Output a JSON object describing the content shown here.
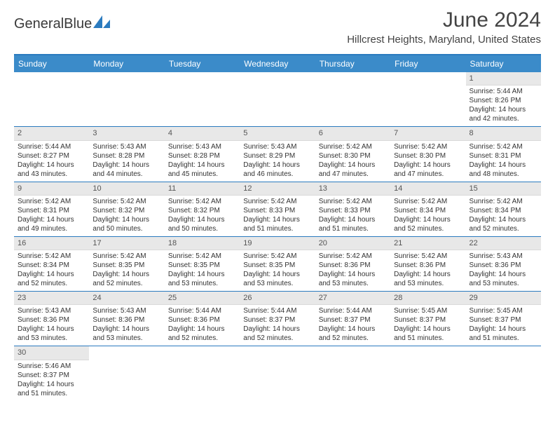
{
  "brand": {
    "name_part1": "General",
    "name_part2": "Blue"
  },
  "title": "June 2024",
  "location": "Hillcrest Heights, Maryland, United States",
  "colors": {
    "header_blue": "#3b8bc9",
    "border_blue": "#2b7bbf",
    "daynum_bg": "#e8e8e8",
    "text": "#333333"
  },
  "day_names": [
    "Sunday",
    "Monday",
    "Tuesday",
    "Wednesday",
    "Thursday",
    "Friday",
    "Saturday"
  ],
  "weeks": [
    [
      null,
      null,
      null,
      null,
      null,
      null,
      {
        "n": "1",
        "sr": "Sunrise: 5:44 AM",
        "ss": "Sunset: 8:26 PM",
        "d1": "Daylight: 14 hours",
        "d2": "and 42 minutes."
      }
    ],
    [
      {
        "n": "2",
        "sr": "Sunrise: 5:44 AM",
        "ss": "Sunset: 8:27 PM",
        "d1": "Daylight: 14 hours",
        "d2": "and 43 minutes."
      },
      {
        "n": "3",
        "sr": "Sunrise: 5:43 AM",
        "ss": "Sunset: 8:28 PM",
        "d1": "Daylight: 14 hours",
        "d2": "and 44 minutes."
      },
      {
        "n": "4",
        "sr": "Sunrise: 5:43 AM",
        "ss": "Sunset: 8:28 PM",
        "d1": "Daylight: 14 hours",
        "d2": "and 45 minutes."
      },
      {
        "n": "5",
        "sr": "Sunrise: 5:43 AM",
        "ss": "Sunset: 8:29 PM",
        "d1": "Daylight: 14 hours",
        "d2": "and 46 minutes."
      },
      {
        "n": "6",
        "sr": "Sunrise: 5:42 AM",
        "ss": "Sunset: 8:30 PM",
        "d1": "Daylight: 14 hours",
        "d2": "and 47 minutes."
      },
      {
        "n": "7",
        "sr": "Sunrise: 5:42 AM",
        "ss": "Sunset: 8:30 PM",
        "d1": "Daylight: 14 hours",
        "d2": "and 47 minutes."
      },
      {
        "n": "8",
        "sr": "Sunrise: 5:42 AM",
        "ss": "Sunset: 8:31 PM",
        "d1": "Daylight: 14 hours",
        "d2": "and 48 minutes."
      }
    ],
    [
      {
        "n": "9",
        "sr": "Sunrise: 5:42 AM",
        "ss": "Sunset: 8:31 PM",
        "d1": "Daylight: 14 hours",
        "d2": "and 49 minutes."
      },
      {
        "n": "10",
        "sr": "Sunrise: 5:42 AM",
        "ss": "Sunset: 8:32 PM",
        "d1": "Daylight: 14 hours",
        "d2": "and 50 minutes."
      },
      {
        "n": "11",
        "sr": "Sunrise: 5:42 AM",
        "ss": "Sunset: 8:32 PM",
        "d1": "Daylight: 14 hours",
        "d2": "and 50 minutes."
      },
      {
        "n": "12",
        "sr": "Sunrise: 5:42 AM",
        "ss": "Sunset: 8:33 PM",
        "d1": "Daylight: 14 hours",
        "d2": "and 51 minutes."
      },
      {
        "n": "13",
        "sr": "Sunrise: 5:42 AM",
        "ss": "Sunset: 8:33 PM",
        "d1": "Daylight: 14 hours",
        "d2": "and 51 minutes."
      },
      {
        "n": "14",
        "sr": "Sunrise: 5:42 AM",
        "ss": "Sunset: 8:34 PM",
        "d1": "Daylight: 14 hours",
        "d2": "and 52 minutes."
      },
      {
        "n": "15",
        "sr": "Sunrise: 5:42 AM",
        "ss": "Sunset: 8:34 PM",
        "d1": "Daylight: 14 hours",
        "d2": "and 52 minutes."
      }
    ],
    [
      {
        "n": "16",
        "sr": "Sunrise: 5:42 AM",
        "ss": "Sunset: 8:34 PM",
        "d1": "Daylight: 14 hours",
        "d2": "and 52 minutes."
      },
      {
        "n": "17",
        "sr": "Sunrise: 5:42 AM",
        "ss": "Sunset: 8:35 PM",
        "d1": "Daylight: 14 hours",
        "d2": "and 52 minutes."
      },
      {
        "n": "18",
        "sr": "Sunrise: 5:42 AM",
        "ss": "Sunset: 8:35 PM",
        "d1": "Daylight: 14 hours",
        "d2": "and 53 minutes."
      },
      {
        "n": "19",
        "sr": "Sunrise: 5:42 AM",
        "ss": "Sunset: 8:35 PM",
        "d1": "Daylight: 14 hours",
        "d2": "and 53 minutes."
      },
      {
        "n": "20",
        "sr": "Sunrise: 5:42 AM",
        "ss": "Sunset: 8:36 PM",
        "d1": "Daylight: 14 hours",
        "d2": "and 53 minutes."
      },
      {
        "n": "21",
        "sr": "Sunrise: 5:42 AM",
        "ss": "Sunset: 8:36 PM",
        "d1": "Daylight: 14 hours",
        "d2": "and 53 minutes."
      },
      {
        "n": "22",
        "sr": "Sunrise: 5:43 AM",
        "ss": "Sunset: 8:36 PM",
        "d1": "Daylight: 14 hours",
        "d2": "and 53 minutes."
      }
    ],
    [
      {
        "n": "23",
        "sr": "Sunrise: 5:43 AM",
        "ss": "Sunset: 8:36 PM",
        "d1": "Daylight: 14 hours",
        "d2": "and 53 minutes."
      },
      {
        "n": "24",
        "sr": "Sunrise: 5:43 AM",
        "ss": "Sunset: 8:36 PM",
        "d1": "Daylight: 14 hours",
        "d2": "and 53 minutes."
      },
      {
        "n": "25",
        "sr": "Sunrise: 5:44 AM",
        "ss": "Sunset: 8:36 PM",
        "d1": "Daylight: 14 hours",
        "d2": "and 52 minutes."
      },
      {
        "n": "26",
        "sr": "Sunrise: 5:44 AM",
        "ss": "Sunset: 8:37 PM",
        "d1": "Daylight: 14 hours",
        "d2": "and 52 minutes."
      },
      {
        "n": "27",
        "sr": "Sunrise: 5:44 AM",
        "ss": "Sunset: 8:37 PM",
        "d1": "Daylight: 14 hours",
        "d2": "and 52 minutes."
      },
      {
        "n": "28",
        "sr": "Sunrise: 5:45 AM",
        "ss": "Sunset: 8:37 PM",
        "d1": "Daylight: 14 hours",
        "d2": "and 51 minutes."
      },
      {
        "n": "29",
        "sr": "Sunrise: 5:45 AM",
        "ss": "Sunset: 8:37 PM",
        "d1": "Daylight: 14 hours",
        "d2": "and 51 minutes."
      }
    ],
    [
      {
        "n": "30",
        "sr": "Sunrise: 5:46 AM",
        "ss": "Sunset: 8:37 PM",
        "d1": "Daylight: 14 hours",
        "d2": "and 51 minutes."
      },
      null,
      null,
      null,
      null,
      null,
      null
    ]
  ]
}
